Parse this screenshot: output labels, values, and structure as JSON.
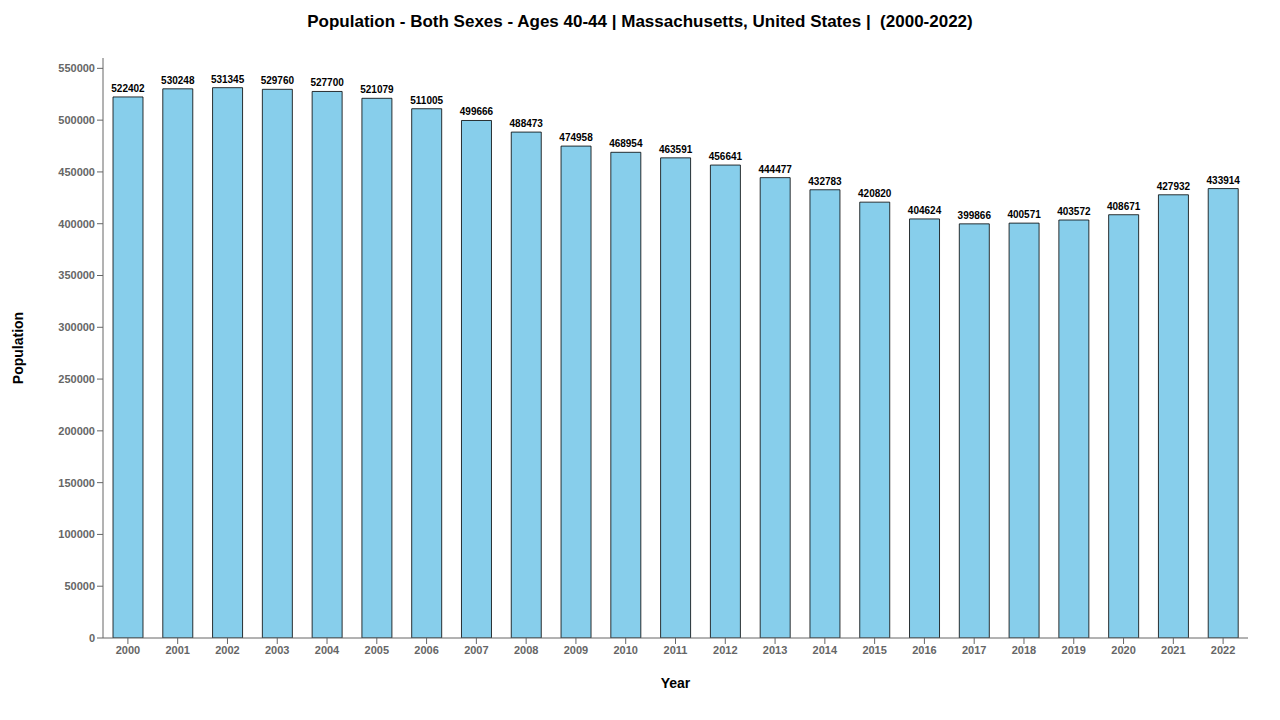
{
  "chart_data": {
    "type": "bar",
    "title": "Population - Both Sexes - Ages 40-44 | Massachusetts, United States |  (2000-2022)",
    "xlabel": "Year",
    "ylabel": "Population",
    "categories": [
      "2000",
      "2001",
      "2002",
      "2003",
      "2004",
      "2005",
      "2006",
      "2007",
      "2008",
      "2009",
      "2010",
      "2011",
      "2012",
      "2013",
      "2014",
      "2015",
      "2016",
      "2017",
      "2018",
      "2019",
      "2020",
      "2021",
      "2022"
    ],
    "values": [
      522402,
      530248,
      531345,
      529760,
      527700,
      521079,
      511005,
      499666,
      488473,
      474958,
      468954,
      463591,
      456641,
      444477,
      432783,
      420820,
      404624,
      399866,
      400571,
      403572,
      408671,
      427932,
      433914
    ],
    "color": "#87CEEB",
    "ylim": [
      0,
      560000
    ],
    "yticks": [
      0,
      50000,
      100000,
      150000,
      200000,
      250000,
      300000,
      350000,
      400000,
      450000,
      500000,
      550000
    ],
    "grid": false,
    "data_labels": true
  }
}
